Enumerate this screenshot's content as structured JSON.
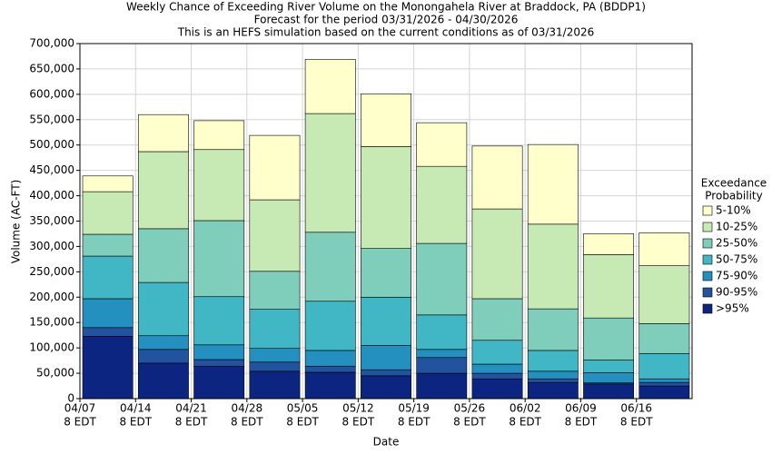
{
  "chart_data": {
    "type": "stacked_bar",
    "title": "Weekly Chance of Exceeding River Volume on the Monongahela River at Braddock, PA (BDDP1)",
    "subtitles": [
      "Forecast for the period 03/31/2026 - 04/30/2026",
      "This is an HEFS simulation based on the current conditions as of 03/31/2026"
    ],
    "x_label": "Date",
    "y_label": "Volume (AC-FT)",
    "categories": [
      [
        "04/07",
        "8 EDT"
      ],
      [
        "04/14",
        "8 EDT"
      ],
      [
        "04/21",
        "8 EDT"
      ],
      [
        "04/28",
        "8 EDT"
      ],
      [
        "05/05",
        "8 EDT"
      ],
      [
        "05/12",
        "8 EDT"
      ],
      [
        "05/19",
        "8 EDT"
      ],
      [
        "05/26",
        "8 EDT"
      ],
      [
        "06/02",
        "8 EDT"
      ],
      [
        "06/09",
        "8 EDT"
      ],
      [
        "06/16",
        "8 EDT"
      ]
    ],
    "ylim": [
      0,
      700000
    ],
    "yticks": [
      {
        "value": 0,
        "label": "0"
      },
      {
        "value": 50000,
        "label": "50,000"
      },
      {
        "value": 100000,
        "label": "100,000"
      },
      {
        "value": 150000,
        "label": "150,000"
      },
      {
        "value": 200000,
        "label": "200,000"
      },
      {
        "value": 250000,
        "label": "250,000"
      },
      {
        "value": 300000,
        "label": "300,000"
      },
      {
        "value": 350000,
        "label": "350,000"
      },
      {
        "value": 400000,
        "label": "400,000"
      },
      {
        "value": 450000,
        "label": "450,000"
      },
      {
        "value": 500000,
        "label": "500,000"
      },
      {
        "value": 550000,
        "label": "550,000"
      },
      {
        "value": 600000,
        "label": "600,000"
      },
      {
        "value": 650000,
        "label": "650,000"
      },
      {
        "value": 700000,
        "label": "700,000"
      }
    ],
    "grid": true,
    "legend_title": [
      "Exceedance",
      "Probability"
    ],
    "legend_position": "right",
    "series": [
      {
        "name": ">95%",
        "color": "#0c2580",
        "values": [
          123000,
          70000,
          64000,
          54000,
          52000,
          45000,
          50000,
          39000,
          32000,
          29000,
          25000
        ]
      },
      {
        "name": "90-95%",
        "color": "#22539f",
        "values": [
          17000,
          27000,
          13000,
          18000,
          12000,
          12000,
          31000,
          11000,
          7000,
          2000,
          7000
        ]
      },
      {
        "name": "75-90%",
        "color": "#2390bf",
        "values": [
          57000,
          27000,
          29000,
          27000,
          31000,
          48000,
          16000,
          18000,
          15000,
          20000,
          7000
        ]
      },
      {
        "name": "50-75%",
        "color": "#41b6c4",
        "values": [
          84000,
          105000,
          95000,
          77000,
          97000,
          95000,
          68000,
          47000,
          41000,
          25000,
          50000
        ]
      },
      {
        "name": "25-50%",
        "color": "#7fcdbb",
        "values": [
          43000,
          106000,
          150000,
          75000,
          136000,
          96000,
          141000,
          82000,
          82000,
          83000,
          59000
        ]
      },
      {
        "name": "10-25%",
        "color": "#c7e9b4",
        "values": [
          84000,
          152000,
          140000,
          141000,
          234000,
          201000,
          152000,
          177000,
          167000,
          125000,
          114000
        ]
      },
      {
        "name": "5-10%",
        "color": "#ffffcc",
        "values": [
          31000,
          73000,
          57000,
          127000,
          107000,
          104000,
          86000,
          124000,
          157000,
          41000,
          65000
        ]
      }
    ]
  }
}
